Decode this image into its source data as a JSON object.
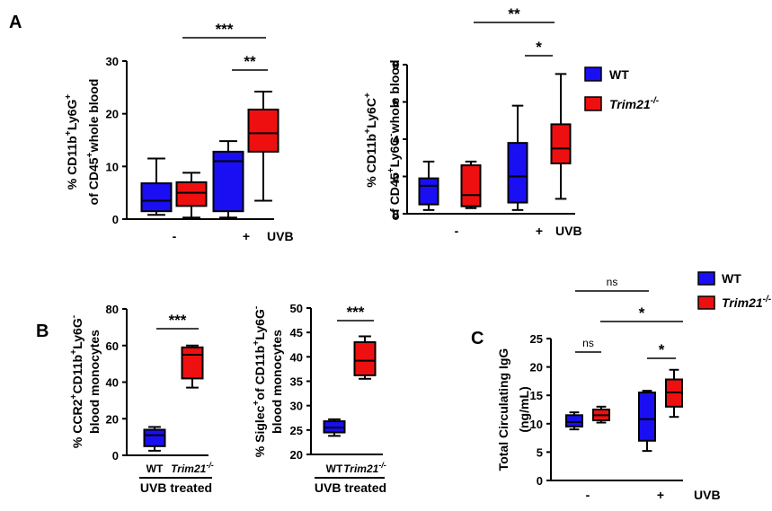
{
  "colors": {
    "wt": "#1a0ff2",
    "ko": "#ee1010"
  },
  "legend": {
    "wt": "WT",
    "ko": "Trim21",
    "ko_sup": "-/-"
  },
  "panels": {
    "A": "A",
    "B": "B",
    "C": "C"
  },
  "chart_data": [
    {
      "type": "box",
      "panel": "A",
      "ylabel_lines": [
        {
          "parts": [
            {
              "t": "% CD11b"
            },
            {
              "t": "+",
              "sup": true
            },
            {
              "t": "Ly6G"
            },
            {
              "t": "+",
              "sup": true
            }
          ]
        },
        {
          "parts": [
            {
              "t": "of CD45"
            },
            {
              "t": "+",
              "sup": true
            },
            {
              "t": " whole blood"
            }
          ]
        }
      ],
      "ylim": [
        0,
        30
      ],
      "yticks": [
        "0",
        "10",
        "20",
        "30"
      ],
      "groups": [
        "-",
        "+"
      ],
      "treatment_label": "UVB",
      "boxes": [
        {
          "group": "-",
          "genotype": "WT",
          "min": 0.8,
          "q1": 1.5,
          "median": 3.5,
          "q3": 6.8,
          "max": 11.5
        },
        {
          "group": "-",
          "genotype": "Trim21-/-",
          "min": 0.3,
          "q1": 2.5,
          "median": 5.0,
          "q3": 7.0,
          "max": 8.8
        },
        {
          "group": "+",
          "genotype": "WT",
          "min": 0.3,
          "q1": 1.5,
          "median": 11.0,
          "q3": 12.8,
          "max": 14.8
        },
        {
          "group": "+",
          "genotype": "Trim21-/-",
          "min": 3.5,
          "q1": 12.8,
          "median": 16.3,
          "q3": 20.8,
          "max": 24.2
        }
      ],
      "significance": [
        {
          "label": "***",
          "from": "-/Trim21-/-",
          "to": "+/Trim21-/-"
        },
        {
          "label": "**",
          "from": "+/WT",
          "to": "+/Trim21-/-"
        }
      ]
    },
    {
      "type": "box",
      "panel": "A",
      "ylabel_lines": [
        {
          "parts": [
            {
              "t": "% CD11b"
            },
            {
              "t": "+",
              "sup": true
            },
            {
              "t": "Ly6C"
            },
            {
              "t": "+",
              "sup": true
            }
          ]
        },
        {
          "parts": [
            {
              "t": "of CD45"
            },
            {
              "t": "+",
              "sup": true
            },
            {
              "t": "Ly6G"
            },
            {
              "t": "-",
              "sup": true
            },
            {
              "t": " whole blood"
            }
          ]
        }
      ],
      "ylim": [
        0,
        8
      ],
      "yticks": [
        "0",
        "2",
        "4",
        "6",
        "8"
      ],
      "groups": [
        "-",
        "+"
      ],
      "treatment_label": "UVB",
      "boxes": [
        {
          "group": "-",
          "genotype": "WT",
          "min": 0.2,
          "q1": 0.5,
          "median": 1.5,
          "q3": 1.9,
          "max": 2.8
        },
        {
          "group": "-",
          "genotype": "Trim21-/-",
          "min": 0.3,
          "q1": 0.4,
          "median": 1.0,
          "q3": 2.6,
          "max": 2.8
        },
        {
          "group": "+",
          "genotype": "WT",
          "min": 0.2,
          "q1": 0.6,
          "median": 2.0,
          "q3": 3.8,
          "max": 5.8
        },
        {
          "group": "+",
          "genotype": "Trim21-/-",
          "min": 0.8,
          "q1": 2.7,
          "median": 3.5,
          "q3": 4.8,
          "max": 7.5
        }
      ],
      "significance": [
        {
          "label": "**",
          "from": "-/Trim21-/-",
          "to": "+/Trim21-/-"
        },
        {
          "label": "*",
          "from": "+/WT",
          "to": "+/Trim21-/-"
        }
      ]
    },
    {
      "type": "box",
      "panel": "B",
      "ylabel_lines": [
        {
          "parts": [
            {
              "t": "% CCR2"
            },
            {
              "t": "+",
              "sup": true
            },
            {
              "t": "CD11b"
            },
            {
              "t": "+",
              "sup": true
            },
            {
              "t": "Ly6G"
            },
            {
              "t": "-",
              "sup": true
            }
          ]
        },
        {
          "parts": [
            {
              "t": "blood monocytes"
            }
          ]
        }
      ],
      "ylim": [
        0,
        80
      ],
      "yticks": [
        "0",
        "20",
        "40",
        "60",
        "80"
      ],
      "categories": [
        "WT",
        "Trim21-/-"
      ],
      "treatment_label": "UVB treated",
      "boxes": [
        {
          "genotype": "WT",
          "min": 2.5,
          "q1": 5.0,
          "median": 11.0,
          "q3": 14.0,
          "max": 15.5
        },
        {
          "genotype": "Trim21-/-",
          "min": 37.0,
          "q1": 42.0,
          "median": 55.0,
          "q3": 59.0,
          "max": 60.0
        }
      ],
      "significance": [
        {
          "label": "***",
          "from": "WT",
          "to": "Trim21-/-"
        }
      ]
    },
    {
      "type": "box",
      "panel": "B",
      "ylabel_lines": [
        {
          "parts": [
            {
              "t": "% Siglec"
            },
            {
              "t": "+",
              "sup": true
            },
            {
              "t": " of CD11b"
            },
            {
              "t": "+",
              "sup": true
            },
            {
              "t": "Ly6G"
            },
            {
              "t": "-",
              "sup": true
            }
          ]
        },
        {
          "parts": [
            {
              "t": "blood monocytes"
            }
          ]
        }
      ],
      "ylim": [
        20,
        50
      ],
      "yticks": [
        "20",
        "25",
        "30",
        "35",
        "40",
        "45",
        "50"
      ],
      "categories": [
        "WT",
        "Trim21-/-"
      ],
      "treatment_label": "UVB treated",
      "boxes": [
        {
          "genotype": "WT",
          "min": 23.8,
          "q1": 24.5,
          "median": 25.5,
          "q3": 26.8,
          "max": 27.2
        },
        {
          "genotype": "Trim21-/-",
          "min": 35.5,
          "q1": 36.2,
          "median": 39.2,
          "q3": 43.0,
          "max": 44.2
        }
      ],
      "significance": [
        {
          "label": "***",
          "from": "WT",
          "to": "Trim21-/-"
        }
      ]
    },
    {
      "type": "box",
      "panel": "C",
      "ylabel_lines": [
        {
          "parts": [
            {
              "t": "Total Circulating IgG"
            }
          ]
        },
        {
          "parts": [
            {
              "t": "(ng/mL)"
            }
          ]
        }
      ],
      "ylim": [
        0,
        25
      ],
      "yticks": [
        "0",
        "5",
        "10",
        "15",
        "20",
        "25"
      ],
      "groups": [
        "-",
        "+"
      ],
      "treatment_label": "UVB",
      "boxes": [
        {
          "group": "-",
          "genotype": "WT",
          "min": 9.0,
          "q1": 9.5,
          "median": 10.3,
          "q3": 11.5,
          "max": 12.0
        },
        {
          "group": "-",
          "genotype": "Trim21-/-",
          "min": 10.2,
          "q1": 10.6,
          "median": 11.5,
          "q3": 12.5,
          "max": 13.0
        },
        {
          "group": "+",
          "genotype": "WT",
          "min": 5.2,
          "q1": 7.0,
          "median": 10.8,
          "q3": 15.5,
          "max": 15.8
        },
        {
          "group": "+",
          "genotype": "Trim21-/-",
          "min": 11.2,
          "q1": 13.0,
          "median": 15.5,
          "q3": 17.8,
          "max": 19.5
        }
      ],
      "significance": [
        {
          "label": "ns",
          "from": "-/WT",
          "to": "+/WT"
        },
        {
          "label": "*",
          "from": "-/Trim21-/-",
          "to": "+/Trim21-/-"
        },
        {
          "label": "ns",
          "from": "-/WT",
          "to": "-/Trim21-/-"
        },
        {
          "label": "*",
          "from": "+/WT",
          "to": "+/Trim21-/-"
        }
      ]
    }
  ]
}
